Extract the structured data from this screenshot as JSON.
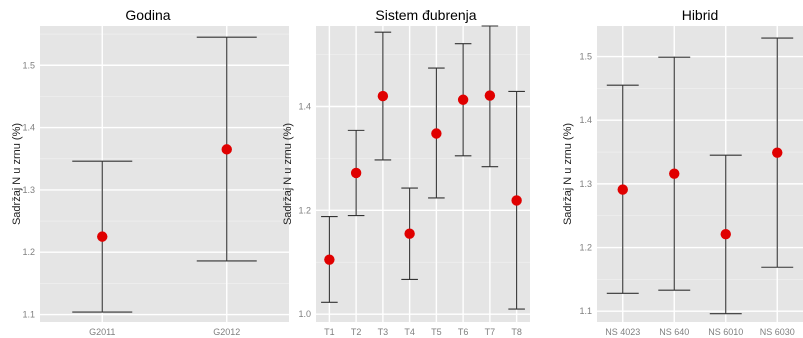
{
  "colors": {
    "panel_background": "#e5e5e5",
    "grid_major": "#ffffff",
    "grid_minor": "#f0f0f0",
    "point": "#e00000",
    "errorbar": "#333333"
  },
  "chart_data": [
    {
      "type": "scatter",
      "title": "Godina",
      "ylabel": "Sadržaj N u zrnu (%)",
      "xlabel": "",
      "ylim": [
        1.088,
        1.563
      ],
      "yticks": [
        1.1,
        1.2,
        1.3,
        1.4,
        1.5
      ],
      "ytick_labels": [
        "1.1",
        "1.2",
        "1.3",
        "1.4",
        "1.5"
      ],
      "grid": true,
      "categories": [
        "G2011",
        "G2012"
      ],
      "series": [
        {
          "values": [
            1.225,
            1.365
          ],
          "lower": [
            1.104,
            1.186
          ],
          "upper": [
            1.346,
            1.545
          ]
        }
      ]
    },
    {
      "type": "scatter",
      "title": "Sistem đubrenja",
      "ylabel": "Sadržaj N u zrnu (%)",
      "xlabel": "",
      "ylim": [
        0.985,
        1.555
      ],
      "yticks": [
        1.0,
        1.2,
        1.4
      ],
      "ytick_labels": [
        "1.0",
        "1.2",
        "1.4"
      ],
      "grid": true,
      "categories": [
        "T1",
        "T2",
        "T3",
        "T4",
        "T5",
        "T6",
        "T7",
        "T8"
      ],
      "series": [
        {
          "values": [
            1.105,
            1.272,
            1.42,
            1.155,
            1.348,
            1.413,
            1.421,
            1.219
          ],
          "lower": [
            1.023,
            1.19,
            1.297,
            1.067,
            1.224,
            1.305,
            1.284,
            1.01
          ],
          "upper": [
            1.188,
            1.354,
            1.543,
            1.243,
            1.474,
            1.521,
            1.555,
            1.429
          ]
        }
      ]
    },
    {
      "type": "scatter",
      "title": "Hibrid",
      "ylabel": "Sadržaj N u zrnu (%)",
      "xlabel": "",
      "ylim": [
        1.083,
        1.548
      ],
      "yticks": [
        1.1,
        1.2,
        1.3,
        1.4,
        1.5
      ],
      "ytick_labels": [
        "1.1",
        "1.2",
        "1.3",
        "1.4",
        "1.5"
      ],
      "grid": true,
      "categories": [
        "NS 4023",
        "NS 640",
        "NS 6010",
        "NS 6030"
      ],
      "series": [
        {
          "values": [
            1.291,
            1.316,
            1.221,
            1.349
          ],
          "lower": [
            1.128,
            1.133,
            1.096,
            1.169
          ],
          "upper": [
            1.455,
            1.499,
            1.345,
            1.529
          ]
        }
      ]
    }
  ]
}
